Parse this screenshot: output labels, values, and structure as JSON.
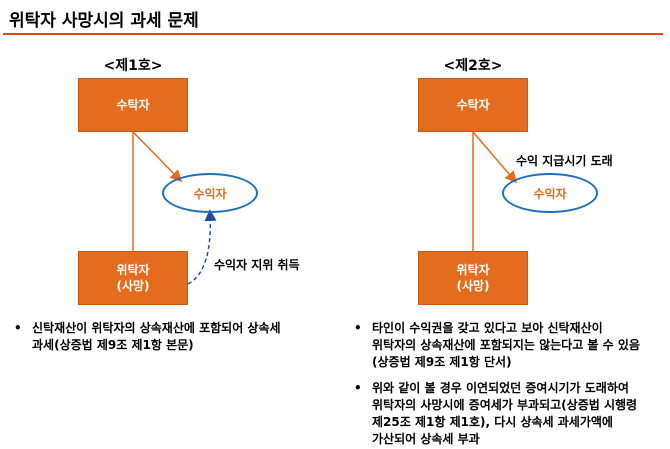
{
  "title": "위탁자 사망시의 과세 문제",
  "left": {
    "header": "<제1호>",
    "trustee": "수탁자",
    "beneficiary": "수익자",
    "settlor_line1": "위탁자",
    "settlor_line2": "(사망)",
    "arrow_label": "수익자 지위 취득",
    "bullets": [
      {
        "lines": [
          "신탁재산이 위탁자의 상속재산에 포함되어 상속세",
          "과세(상증법 제9조 제1항 본문)"
        ]
      }
    ]
  },
  "right": {
    "header": "<제2호>",
    "trustee": "수탁자",
    "beneficiary": "수익자",
    "settlor_line1": "위탁자",
    "settlor_line2": "(사망)",
    "arrow_label": "수익 지급시기 도래",
    "bullets": [
      {
        "lines": [
          "타인이 수익권을 갖고 있다고 보아 신탁재산이",
          "위탁자의 상속재산에 포함되지는 않는다고 볼 수 있음",
          "(상증법 제9조 제1항 단서)"
        ]
      },
      {
        "lines": [
          "위와 같이 볼 경우 이연되었던 증여시기가 도래하여",
          "위탁자의 사망시에 증여세가 부과되고(상증법 시행령",
          "제25조 제1항 제1호), 다시 상속세 과세가액에",
          "가산되어 상속세 부과"
        ]
      }
    ]
  },
  "colors": {
    "accent": "#e36c1e",
    "rule": "#e2471c",
    "ellipse": "#1f6fbf"
  }
}
